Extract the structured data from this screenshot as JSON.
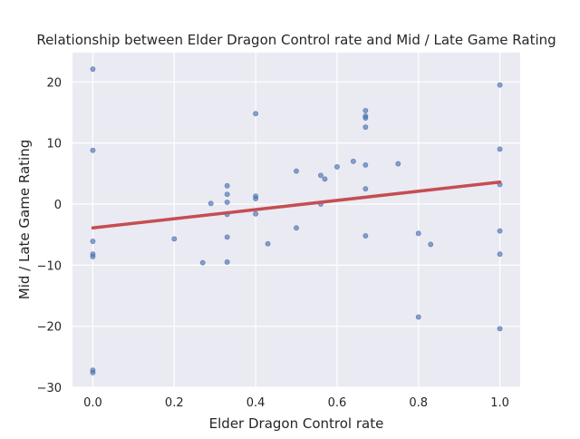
{
  "chart_data": {
    "type": "scatter",
    "title": "Relationship between Elder Dragon Control rate and Mid / Late Game Rating",
    "xlabel": "Elder Dragon Control rate",
    "ylabel": "Mid / Late Game Rating",
    "xlim": [
      -0.05,
      1.05
    ],
    "ylim": [
      -30,
      24.8
    ],
    "xticks": [
      0.0,
      0.2,
      0.4,
      0.6,
      0.8,
      1.0
    ],
    "xtick_labels": [
      "0.0",
      "0.2",
      "0.4",
      "0.6",
      "0.8",
      "1.0"
    ],
    "yticks": [
      -30,
      -20,
      -10,
      0,
      10,
      20
    ],
    "ytick_labels": [
      "−30",
      "−20",
      "−10",
      "0",
      "10",
      "20"
    ],
    "grid": true,
    "colors": {
      "points": "#4c72b0",
      "regression": "#c44e52",
      "background": "#eaeaf2",
      "grid": "#ffffff"
    },
    "points": [
      {
        "x": 0.0,
        "y": 22.1
      },
      {
        "x": 0.0,
        "y": 8.8
      },
      {
        "x": 0.0,
        "y": -6.1
      },
      {
        "x": 0.0,
        "y": -8.2
      },
      {
        "x": 0.0,
        "y": -8.6
      },
      {
        "x": 0.0,
        "y": -27.2
      },
      {
        "x": 0.0,
        "y": -27.6
      },
      {
        "x": 0.2,
        "y": -5.7
      },
      {
        "x": 0.27,
        "y": -9.6
      },
      {
        "x": 0.29,
        "y": 0.1
      },
      {
        "x": 0.33,
        "y": 3.0
      },
      {
        "x": 0.33,
        "y": 1.6
      },
      {
        "x": 0.33,
        "y": 0.3
      },
      {
        "x": 0.33,
        "y": -1.7
      },
      {
        "x": 0.33,
        "y": -5.4
      },
      {
        "x": 0.33,
        "y": -9.5
      },
      {
        "x": 0.4,
        "y": 14.8
      },
      {
        "x": 0.4,
        "y": 1.3
      },
      {
        "x": 0.4,
        "y": 0.9
      },
      {
        "x": 0.4,
        "y": -1.6
      },
      {
        "x": 0.43,
        "y": -6.5
      },
      {
        "x": 0.5,
        "y": 5.4
      },
      {
        "x": 0.5,
        "y": -3.9
      },
      {
        "x": 0.56,
        "y": 4.7
      },
      {
        "x": 0.56,
        "y": 0.0
      },
      {
        "x": 0.57,
        "y": 4.1
      },
      {
        "x": 0.6,
        "y": 6.1
      },
      {
        "x": 0.64,
        "y": 7.0
      },
      {
        "x": 0.67,
        "y": 15.3
      },
      {
        "x": 0.67,
        "y": 14.4
      },
      {
        "x": 0.67,
        "y": 14.1
      },
      {
        "x": 0.67,
        "y": 12.6
      },
      {
        "x": 0.67,
        "y": 6.4
      },
      {
        "x": 0.67,
        "y": 2.5
      },
      {
        "x": 0.67,
        "y": -5.2
      },
      {
        "x": 0.75,
        "y": 6.6
      },
      {
        "x": 0.8,
        "y": -4.8
      },
      {
        "x": 0.8,
        "y": -18.5
      },
      {
        "x": 0.83,
        "y": -6.6
      },
      {
        "x": 1.0,
        "y": 19.5
      },
      {
        "x": 1.0,
        "y": 9.0
      },
      {
        "x": 1.0,
        "y": 3.2
      },
      {
        "x": 1.0,
        "y": -4.4
      },
      {
        "x": 1.0,
        "y": -8.2
      },
      {
        "x": 1.0,
        "y": -20.4
      }
    ],
    "regression_line": {
      "x": [
        0.0,
        1.0
      ],
      "y": [
        -3.9,
        3.6
      ]
    }
  }
}
